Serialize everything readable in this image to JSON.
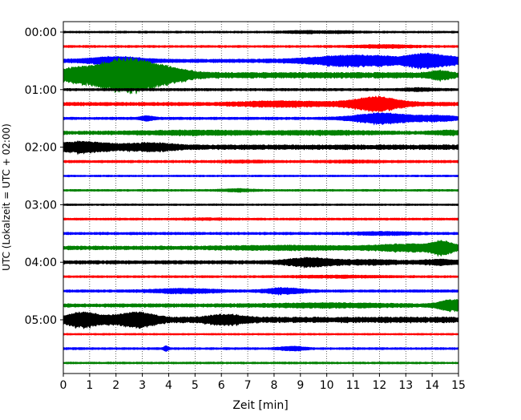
{
  "chart_data": {
    "type": "line",
    "title": "",
    "xlabel": "Zeit  [min]",
    "ylabel": "UTC (Lokalzeit = UTC + 02:00)",
    "xlim": [
      0,
      15
    ],
    "x_ticks": [
      0,
      1,
      2,
      3,
      4,
      5,
      6,
      7,
      8,
      9,
      10,
      11,
      12,
      13,
      14,
      15
    ],
    "x_tick_labels": [
      "0",
      "1",
      "2",
      "3",
      "4",
      "5",
      "6",
      "7",
      "8",
      "9",
      "10",
      "11",
      "12",
      "13",
      "14",
      "15"
    ],
    "y_tick_labels": [
      "00:00",
      "01:00",
      "02:00",
      "03:00",
      "04:00",
      "05:00"
    ],
    "y_tick_rows": [
      0,
      4,
      8,
      12,
      16,
      20
    ],
    "grid": "vertical dotted",
    "trace_count": 24,
    "minutes_per_trace": 15,
    "color_cycle": [
      "#000000",
      "#ff0000",
      "#0000ff",
      "#008000"
    ],
    "series": [
      {
        "start": "00:00",
        "color": "#000000",
        "base": 0.1,
        "bursts": [
          [
            9.1,
            0.8,
            0.1
          ],
          [
            10.6,
            0.7,
            0.08
          ]
        ]
      },
      {
        "start": "00:15",
        "color": "#ff0000",
        "base": 0.11,
        "bursts": [
          [
            12.2,
            1.2,
            0.12
          ]
        ]
      },
      {
        "start": "00:30",
        "color": "#0000ff",
        "base": 0.18,
        "bursts": [
          [
            2.0,
            1.2,
            0.35
          ],
          [
            11.2,
            2.0,
            0.55
          ],
          [
            13.7,
            0.7,
            0.55
          ],
          [
            14.7,
            1.0,
            0.35
          ]
        ]
      },
      {
        "start": "00:45",
        "color": "#008000",
        "base": 0.3,
        "bursts": [
          [
            0.3,
            0.8,
            0.45
          ],
          [
            2.4,
            1.5,
            1.75
          ],
          [
            4.2,
            0.9,
            0.25
          ],
          [
            14.3,
            0.4,
            0.3
          ]
        ]
      },
      {
        "start": "01:00",
        "color": "#000000",
        "base": 0.13,
        "bursts": [
          [
            13.5,
            0.6,
            0.12
          ]
        ]
      },
      {
        "start": "01:15",
        "color": "#ff0000",
        "base": 0.18,
        "bursts": [
          [
            8.0,
            1.5,
            0.2
          ],
          [
            11.9,
            0.9,
            0.6
          ],
          [
            11.4,
            2.2,
            0.15
          ]
        ]
      },
      {
        "start": "01:30",
        "color": "#0000ff",
        "base": 0.13,
        "bursts": [
          [
            3.2,
            0.3,
            0.2
          ],
          [
            12.1,
            1.2,
            0.55
          ],
          [
            14.2,
            0.9,
            0.25
          ]
        ]
      },
      {
        "start": "01:45",
        "color": "#008000",
        "base": 0.18,
        "bursts": [
          [
            5.0,
            2.5,
            0.15
          ],
          [
            10.0,
            2.0,
            0.12
          ],
          [
            14.6,
            0.6,
            0.15
          ]
        ]
      },
      {
        "start": "02:00",
        "color": "#000000",
        "base": 0.25,
        "bursts": [
          [
            0.7,
            1.2,
            0.45
          ],
          [
            3.3,
            1.1,
            0.3
          ]
        ]
      },
      {
        "start": "02:15",
        "color": "#ff0000",
        "base": 0.13,
        "bursts": [
          [
            7.0,
            1.0,
            0.06
          ],
          [
            11.0,
            1.0,
            0.06
          ]
        ]
      },
      {
        "start": "02:30",
        "color": "#0000ff",
        "base": 0.09,
        "bursts": []
      },
      {
        "start": "02:45",
        "color": "#008000",
        "base": 0.1,
        "bursts": [
          [
            6.6,
            0.6,
            0.12
          ]
        ]
      },
      {
        "start": "03:00",
        "color": "#000000",
        "base": 0.09,
        "bursts": []
      },
      {
        "start": "03:15",
        "color": "#ff0000",
        "base": 0.11,
        "bursts": [
          [
            5.5,
            1.0,
            0.05
          ]
        ]
      },
      {
        "start": "03:30",
        "color": "#0000ff",
        "base": 0.13,
        "bursts": [
          [
            12.2,
            1.2,
            0.12
          ]
        ]
      },
      {
        "start": "03:45",
        "color": "#008000",
        "base": 0.2,
        "bursts": [
          [
            8.5,
            2.5,
            0.12
          ],
          [
            13.1,
            1.4,
            0.3
          ],
          [
            14.4,
            0.5,
            0.55
          ]
        ]
      },
      {
        "start": "04:00",
        "color": "#000000",
        "base": 0.18,
        "bursts": [
          [
            9.3,
            1.0,
            0.38
          ],
          [
            11.5,
            1.5,
            0.15
          ],
          [
            14.3,
            0.7,
            0.2
          ]
        ]
      },
      {
        "start": "04:15",
        "color": "#ff0000",
        "base": 0.11,
        "bursts": [
          [
            10.5,
            2.0,
            0.08
          ]
        ]
      },
      {
        "start": "04:30",
        "color": "#0000ff",
        "base": 0.13,
        "bursts": [
          [
            4.6,
            1.3,
            0.2
          ],
          [
            8.4,
            0.8,
            0.3
          ]
        ]
      },
      {
        "start": "04:45",
        "color": "#008000",
        "base": 0.18,
        "bursts": [
          [
            10.1,
            2.5,
            0.15
          ],
          [
            14.8,
            0.6,
            0.55
          ]
        ]
      },
      {
        "start": "05:00",
        "color": "#000000",
        "base": 0.3,
        "bursts": [
          [
            0.7,
            0.6,
            0.6
          ],
          [
            2.9,
            0.7,
            0.55
          ],
          [
            6.2,
            0.8,
            0.4
          ],
          [
            1.8,
            1.2,
            0.25
          ]
        ]
      },
      {
        "start": "05:15",
        "color": "#ff0000",
        "base": 0.09,
        "bursts": []
      },
      {
        "start": "05:30",
        "color": "#0000ff",
        "base": 0.11,
        "bursts": [
          [
            3.9,
            0.1,
            0.25
          ],
          [
            8.7,
            0.5,
            0.2
          ]
        ]
      },
      {
        "start": "05:45",
        "color": "#008000",
        "base": 0.1,
        "bursts": []
      }
    ]
  }
}
